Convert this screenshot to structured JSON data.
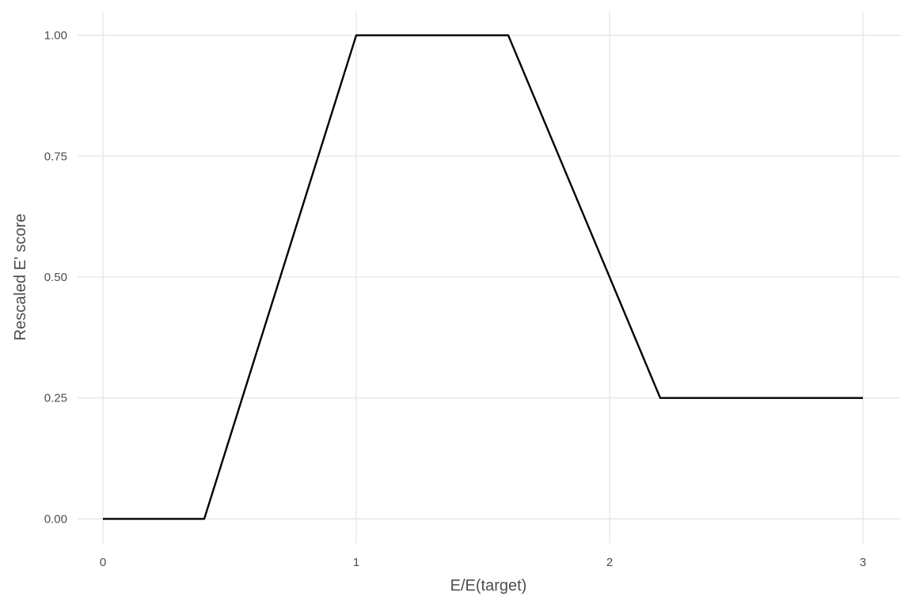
{
  "chart_data": {
    "type": "line",
    "title": "",
    "xlabel": "E/E(target)",
    "ylabel": "Rescaled E' score",
    "xlim": [
      -0.1,
      3.15
    ],
    "ylim": [
      -0.05,
      1.05
    ],
    "x_ticks": [
      0,
      1,
      2,
      3
    ],
    "x_tick_labels": [
      "0",
      "1",
      "2",
      "3"
    ],
    "y_ticks": [
      0,
      0.25,
      0.5,
      0.75,
      1
    ],
    "y_tick_labels": [
      "0.00",
      "0.25",
      "0.50",
      "0.75",
      "1.00"
    ],
    "grid": true,
    "legend": "none",
    "line_color": "#000000",
    "grid_color": "#e6e6e6",
    "series": [
      {
        "x": [
          0,
          0.4,
          1.0,
          1.6,
          2.2,
          3.0
        ],
        "y": [
          0,
          0,
          1.0,
          1.0,
          0.25,
          0.25
        ]
      }
    ]
  }
}
